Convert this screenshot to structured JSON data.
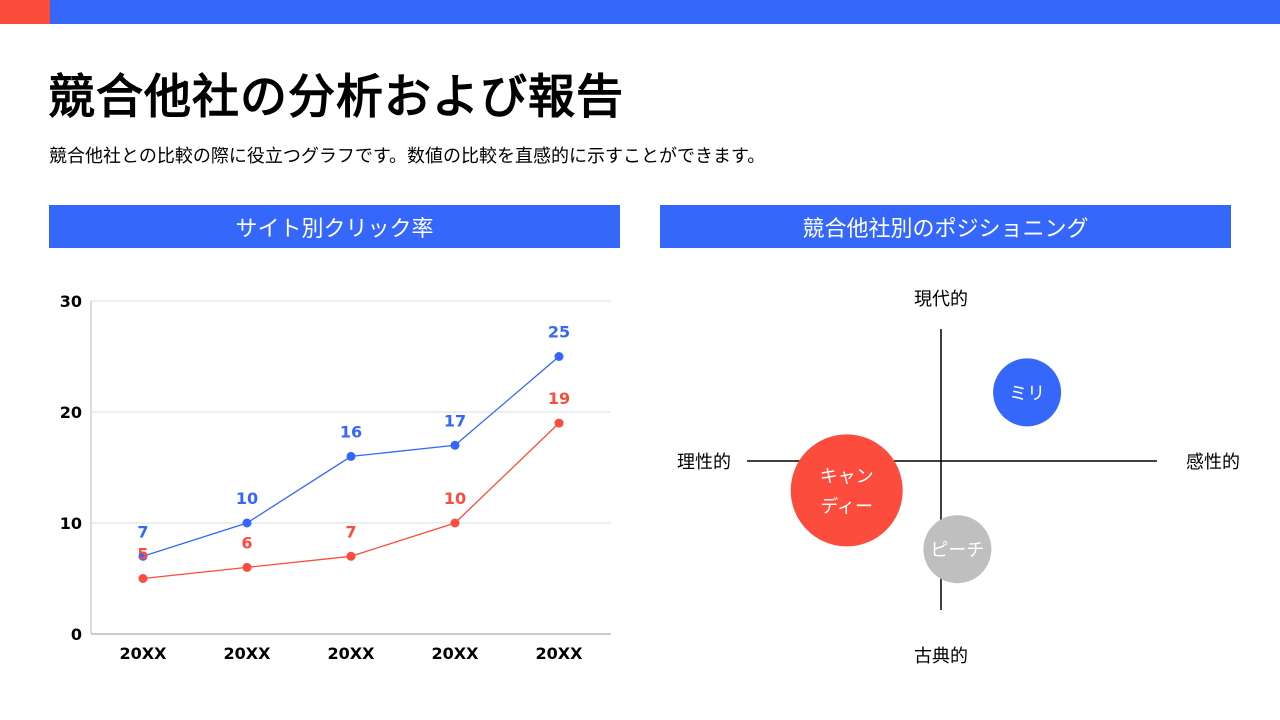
{
  "header": {
    "title": "競合他社の分析および報告",
    "subtitle": "競合他社との比較の際に役立つグラフです。数値の比較を直感的に示すことができます。"
  },
  "colors": {
    "accent": "#3567fb",
    "red": "#fb4c3e",
    "gray": "#c0bfc0"
  },
  "sections": {
    "left_title": "サイト別クリック率",
    "right_title": "競合他社別のポジショニング"
  },
  "chart_data": [
    {
      "type": "line",
      "categories": [
        "20XX",
        "20XX",
        "20XX",
        "20XX",
        "20XX"
      ],
      "series": [
        {
          "color": "#3567fb",
          "values": [
            7,
            10,
            16,
            17,
            25
          ]
        },
        {
          "color": "#fb4c3e",
          "values": [
            5,
            6,
            7,
            10,
            19
          ]
        }
      ],
      "ylim": [
        0,
        30
      ],
      "yticks": [
        "0",
        "10",
        "20",
        "30"
      ],
      "grid": true,
      "data_labels": true
    },
    {
      "type": "scatter",
      "axes": {
        "top": "現代的",
        "bottom": "古典的",
        "left": "理性的",
        "right": "感性的"
      },
      "points": [
        {
          "label": "ミリ",
          "color": "#3567fb",
          "x": 0.42,
          "y": 0.49,
          "size": "small"
        },
        {
          "label": "キャンディー",
          "label_lines": [
            "キャン",
            "ディー"
          ],
          "color": "#fb4c3e",
          "x": -0.46,
          "y": -0.21,
          "size": "large"
        },
        {
          "label": "ピーチ",
          "color": "#c0bfc0",
          "x": 0.08,
          "y": -0.63,
          "size": "small"
        }
      ]
    }
  ]
}
